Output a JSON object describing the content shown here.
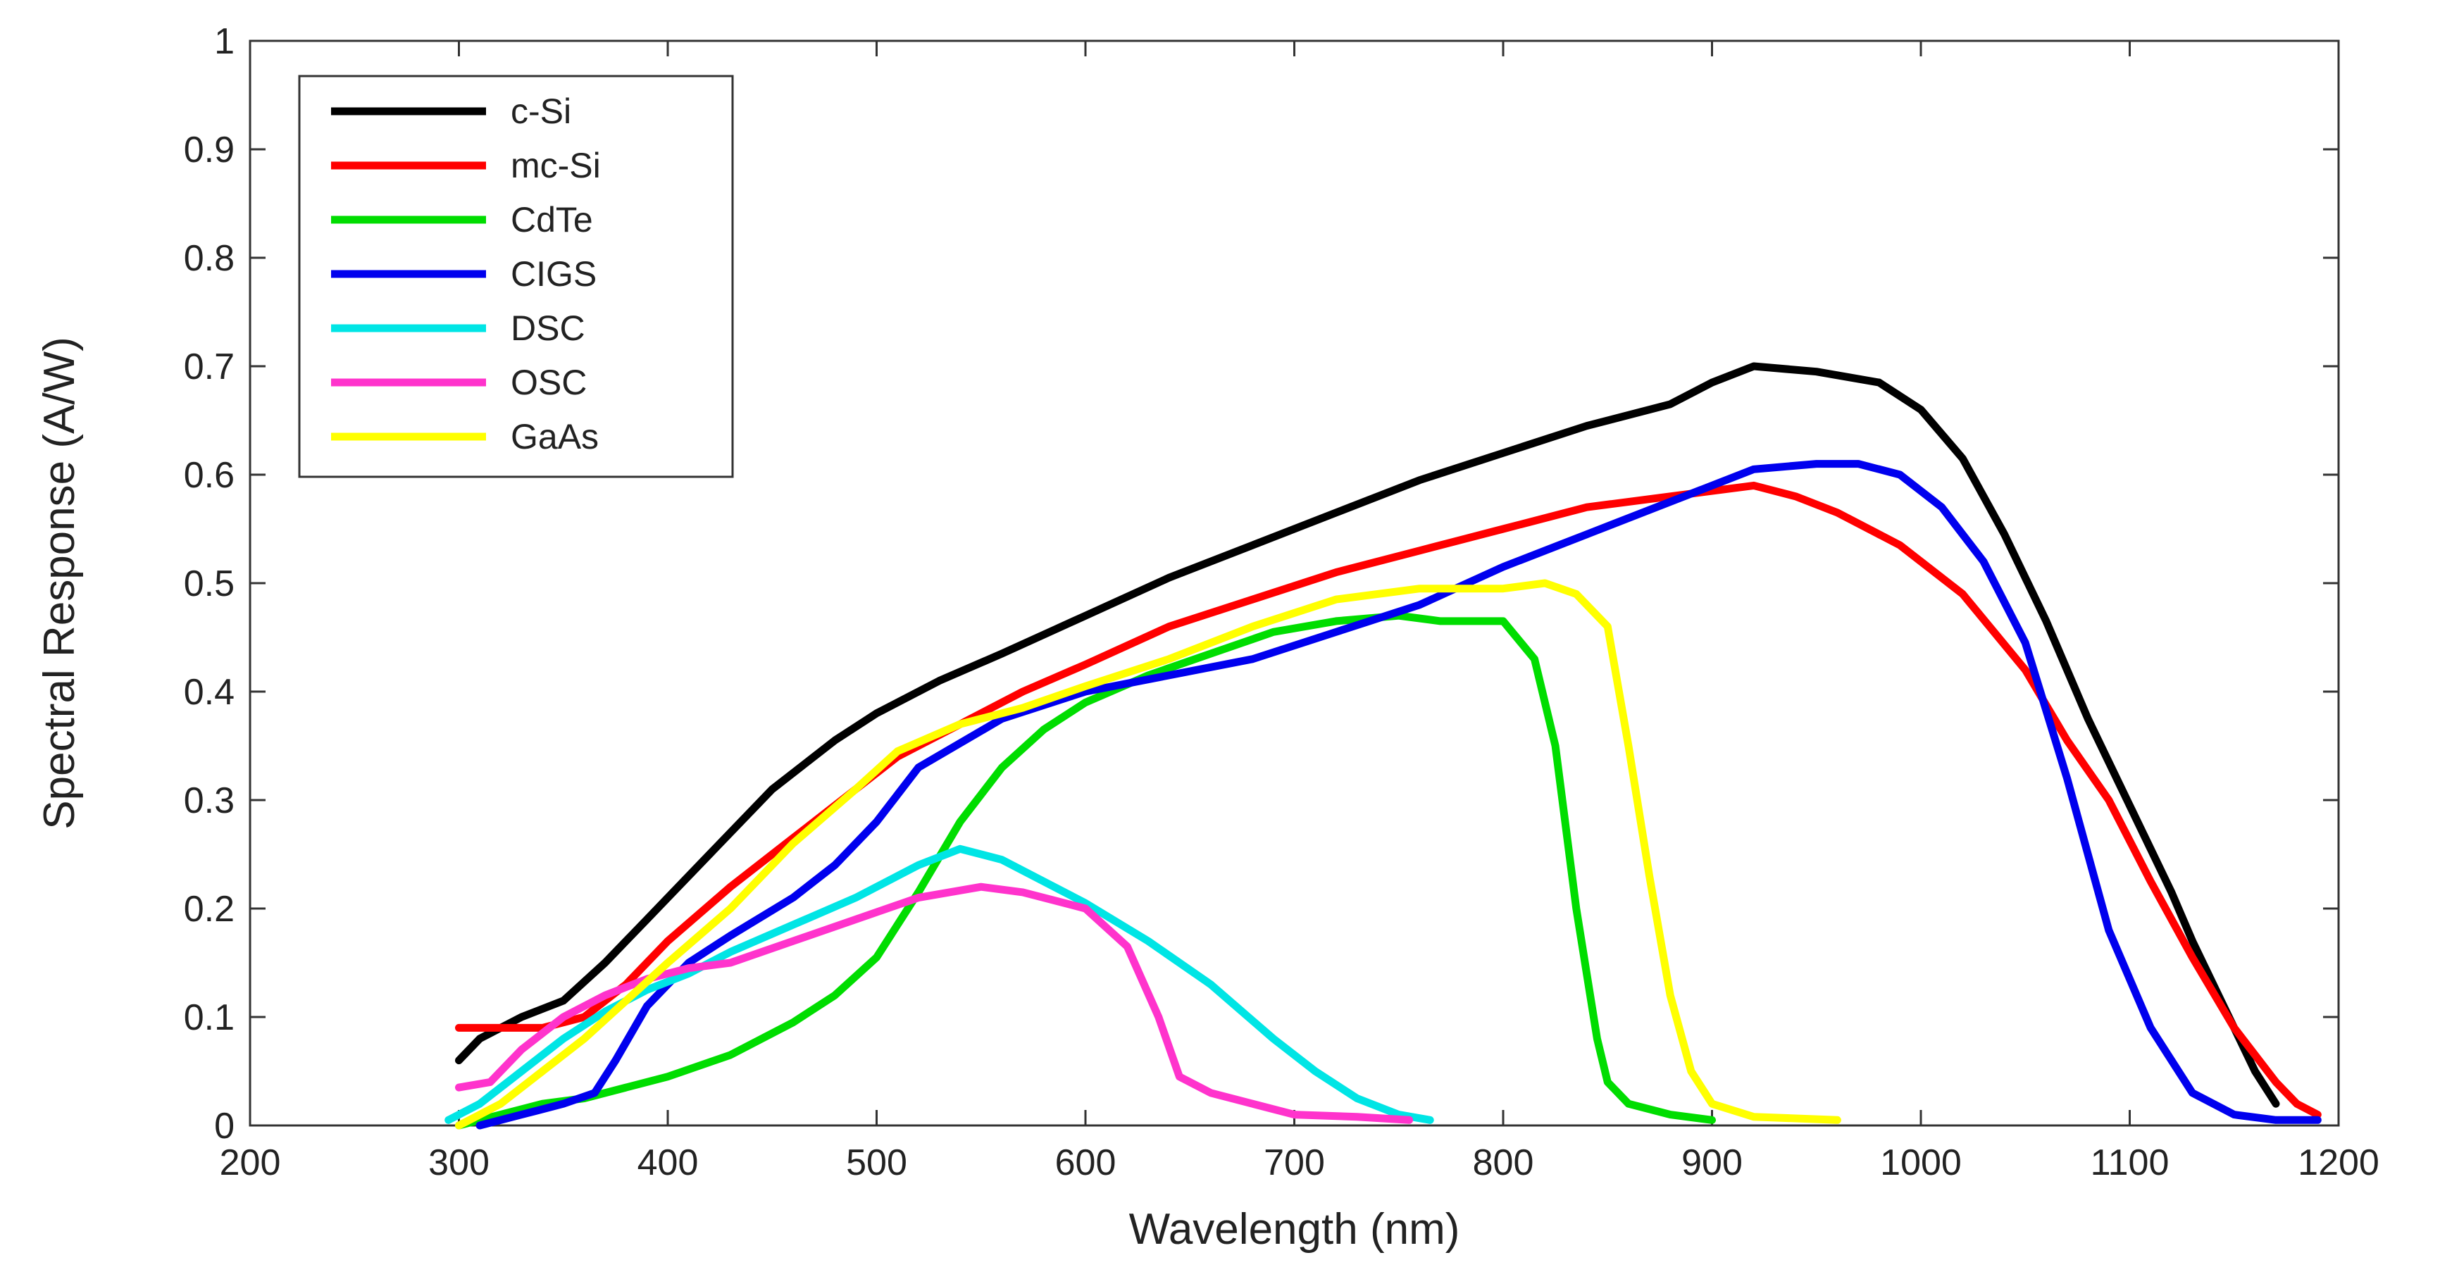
{
  "chart_data": {
    "type": "line",
    "title": "",
    "xlabel": "Wavelength (nm)",
    "ylabel": "Spectral Response (A/W)",
    "xlim": [
      200,
      1200
    ],
    "ylim": [
      0,
      1
    ],
    "xticks": [
      200,
      300,
      400,
      500,
      600,
      700,
      800,
      900,
      1000,
      1100,
      1200
    ],
    "yticks": [
      0,
      0.1,
      0.2,
      0.3,
      0.4,
      0.5,
      0.6,
      0.7,
      0.8,
      0.9,
      1
    ],
    "xtick_labels": [
      "200",
      "300",
      "400",
      "500",
      "600",
      "700",
      "800",
      "900",
      "1000",
      "1100",
      "1200"
    ],
    "ytick_labels": [
      "0",
      "0.1",
      "0.2",
      "0.3",
      "0.4",
      "0.5",
      "0.6",
      "0.7",
      "0.8",
      "0.9",
      "1"
    ],
    "grid": false,
    "legend_position": "top-left",
    "series": [
      {
        "name": "c-Si",
        "color": "#000000",
        "x": [
          300,
          310,
          330,
          350,
          370,
          390,
          420,
          450,
          480,
          500,
          530,
          560,
          600,
          640,
          680,
          720,
          760,
          800,
          840,
          880,
          900,
          920,
          950,
          980,
          1000,
          1020,
          1040,
          1060,
          1080,
          1100,
          1120,
          1130,
          1140,
          1150,
          1160,
          1170
        ],
        "y": [
          0.06,
          0.08,
          0.1,
          0.115,
          0.15,
          0.19,
          0.25,
          0.31,
          0.355,
          0.38,
          0.41,
          0.435,
          0.47,
          0.505,
          0.535,
          0.565,
          0.595,
          0.62,
          0.645,
          0.665,
          0.685,
          0.7,
          0.695,
          0.685,
          0.66,
          0.615,
          0.545,
          0.465,
          0.375,
          0.295,
          0.215,
          0.17,
          0.13,
          0.09,
          0.05,
          0.02
        ]
      },
      {
        "name": "mc-Si",
        "color": "#ff0000",
        "x": [
          300,
          320,
          340,
          360,
          380,
          400,
          430,
          460,
          490,
          510,
          540,
          570,
          600,
          640,
          680,
          720,
          760,
          800,
          840,
          880,
          900,
          920,
          940,
          960,
          990,
          1020,
          1050,
          1070,
          1090,
          1110,
          1130,
          1150,
          1170,
          1180,
          1190
        ],
        "y": [
          0.09,
          0.09,
          0.09,
          0.1,
          0.13,
          0.17,
          0.22,
          0.265,
          0.31,
          0.34,
          0.37,
          0.4,
          0.425,
          0.46,
          0.485,
          0.51,
          0.53,
          0.55,
          0.57,
          0.58,
          0.585,
          0.59,
          0.58,
          0.565,
          0.535,
          0.49,
          0.42,
          0.355,
          0.3,
          0.225,
          0.155,
          0.09,
          0.04,
          0.02,
          0.01
        ]
      },
      {
        "name": "CdTe",
        "color": "#00dd00",
        "x": [
          300,
          320,
          340,
          360,
          380,
          400,
          430,
          460,
          480,
          500,
          520,
          540,
          560,
          580,
          600,
          630,
          660,
          690,
          720,
          750,
          770,
          800,
          815,
          825,
          835,
          845,
          850,
          860,
          880,
          900
        ],
        "y": [
          0.0,
          0.01,
          0.02,
          0.025,
          0.035,
          0.045,
          0.065,
          0.095,
          0.12,
          0.155,
          0.215,
          0.28,
          0.33,
          0.365,
          0.39,
          0.415,
          0.435,
          0.455,
          0.465,
          0.47,
          0.465,
          0.465,
          0.43,
          0.35,
          0.2,
          0.08,
          0.04,
          0.02,
          0.01,
          0.005
        ]
      },
      {
        "name": "CIGS",
        "color": "#0000ee",
        "x": [
          310,
          330,
          350,
          365,
          375,
          390,
          410,
          430,
          460,
          480,
          500,
          520,
          560,
          600,
          640,
          680,
          720,
          760,
          800,
          840,
          880,
          920,
          950,
          970,
          990,
          1010,
          1030,
          1050,
          1070,
          1090,
          1110,
          1130,
          1150,
          1170,
          1190
        ],
        "y": [
          0.0,
          0.01,
          0.02,
          0.03,
          0.06,
          0.11,
          0.15,
          0.175,
          0.21,
          0.24,
          0.28,
          0.33,
          0.375,
          0.4,
          0.415,
          0.43,
          0.455,
          0.48,
          0.515,
          0.545,
          0.575,
          0.605,
          0.61,
          0.61,
          0.6,
          0.57,
          0.52,
          0.445,
          0.32,
          0.18,
          0.09,
          0.03,
          0.01,
          0.005,
          0.005
        ]
      },
      {
        "name": "DSC",
        "color": "#00e5e5",
        "x": [
          295,
          310,
          330,
          350,
          370,
          390,
          410,
          430,
          460,
          490,
          520,
          540,
          560,
          580,
          600,
          630,
          660,
          690,
          710,
          730,
          750,
          765
        ],
        "y": [
          0.005,
          0.02,
          0.05,
          0.08,
          0.105,
          0.125,
          0.14,
          0.16,
          0.185,
          0.21,
          0.24,
          0.255,
          0.245,
          0.225,
          0.205,
          0.17,
          0.13,
          0.08,
          0.05,
          0.025,
          0.01,
          0.005
        ]
      },
      {
        "name": "OSC",
        "color": "#ff33cc",
        "x": [
          300,
          315,
          330,
          350,
          370,
          390,
          410,
          430,
          460,
          490,
          520,
          550,
          570,
          600,
          620,
          635,
          645,
          660,
          680,
          700,
          730,
          755
        ],
        "y": [
          0.035,
          0.04,
          0.07,
          0.1,
          0.12,
          0.135,
          0.145,
          0.15,
          0.17,
          0.19,
          0.21,
          0.22,
          0.215,
          0.2,
          0.165,
          0.1,
          0.045,
          0.03,
          0.02,
          0.01,
          0.008,
          0.005
        ]
      },
      {
        "name": "GaAs",
        "color": "#ffff00",
        "x": [
          300,
          320,
          340,
          360,
          380,
          400,
          430,
          460,
          490,
          510,
          540,
          570,
          600,
          640,
          680,
          720,
          760,
          800,
          820,
          835,
          850,
          860,
          870,
          880,
          890,
          900,
          920,
          960
        ],
        "y": [
          0.0,
          0.02,
          0.05,
          0.08,
          0.115,
          0.15,
          0.2,
          0.26,
          0.31,
          0.345,
          0.37,
          0.385,
          0.405,
          0.43,
          0.46,
          0.485,
          0.495,
          0.495,
          0.5,
          0.49,
          0.46,
          0.35,
          0.23,
          0.12,
          0.05,
          0.02,
          0.008,
          0.005
        ]
      }
    ]
  }
}
